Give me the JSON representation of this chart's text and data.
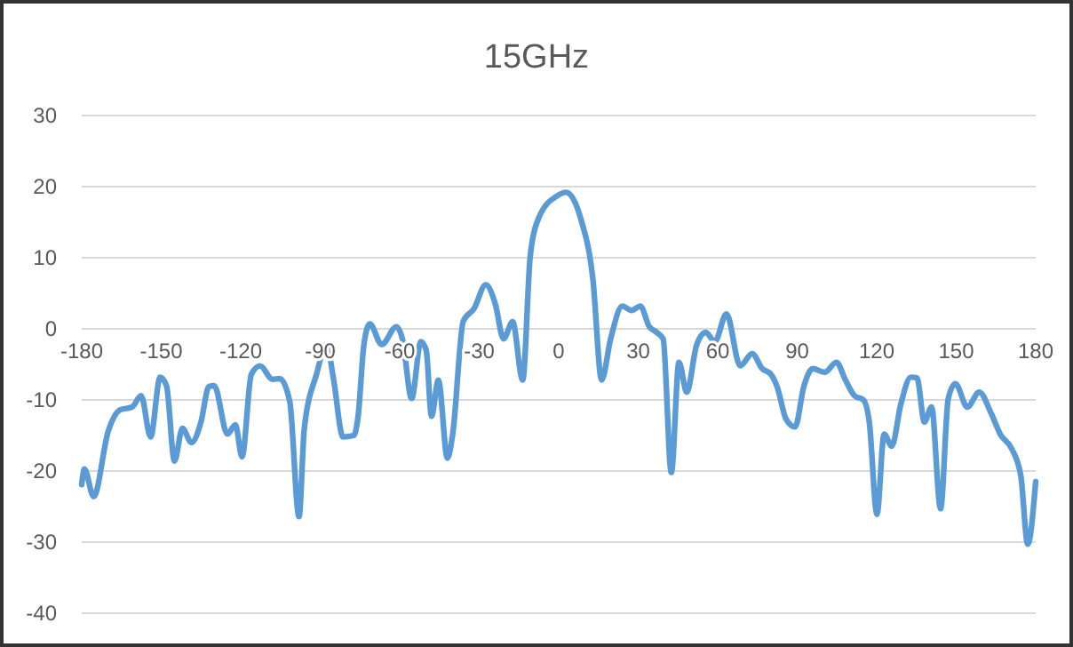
{
  "chart_data": {
    "type": "line",
    "title": "15GHz",
    "x": [
      -180,
      -179,
      -175.5,
      -170,
      -165.5,
      -161,
      -157.6,
      -154,
      -150.4,
      -148,
      -145,
      -142,
      -138.6,
      -135,
      -132,
      -130,
      -125,
      -122,
      -119.5,
      -116,
      -112.7,
      -108,
      -105.3,
      -101.5,
      -98,
      -96,
      -91.4,
      -87.6,
      -85,
      -81.4,
      -77.3,
      -75.7,
      -73.5,
      -71.3,
      -66.8,
      -61.2,
      -59,
      -55.5,
      -52,
      -50,
      -48,
      -45.4,
      -42,
      -40,
      -36,
      -32,
      -27.5,
      -24,
      -20.8,
      -17.4,
      -13.6,
      -10.7,
      -7.3,
      -0.6,
      2.8,
      8.4,
      12.9,
      16.2,
      19.6,
      24,
      27.5,
      30.8,
      34.2,
      37,
      39.4,
      42.5,
      45.4,
      48.3,
      52.1,
      55.5,
      58.9,
      63.3,
      68.5,
      73,
      76.8,
      80.1,
      82.4,
      85.8,
      89.2,
      92.5,
      95.9,
      100.4,
      104.8,
      108.2,
      111.6,
      115,
      117.2,
      120.1,
      122.8,
      125.7,
      129.1,
      132.9,
      135.2,
      138,
      140.7,
      144.1,
      147,
      149.7,
      154.2,
      158.7,
      163.2,
      166.6,
      171,
      174.4,
      177,
      180
    ],
    "series": [
      {
        "color": "#5b9bd5",
        "values": [
          -21.9,
          -19.7,
          -23.6,
          -14.4,
          -11.4,
          -11,
          -9.4,
          -15.2,
          -6.8,
          -8,
          -18.6,
          -14,
          -16,
          -13.1,
          -8.1,
          -8,
          -14.8,
          -13.5,
          -18,
          -6.4,
          -5.2,
          -7.1,
          -7,
          -10.2,
          -26.4,
          -14,
          -6.4,
          -2.2,
          -7,
          -15.2,
          -15,
          -12.3,
          -2.2,
          0.7,
          -2.2,
          0.3,
          -1.4,
          -9.8,
          -1.8,
          -3,
          -12.3,
          -7.2,
          -18.2,
          -14.8,
          1.1,
          2.8,
          6.2,
          3.6,
          -1.4,
          1,
          -7.2,
          10.4,
          15.8,
          18.7,
          19.2,
          15.4,
          7,
          -7.2,
          -1.4,
          3.2,
          2.6,
          3.2,
          0.3,
          -0.5,
          -1.4,
          -20.2,
          -4.7,
          -8.9,
          -2.2,
          -0.5,
          -1.8,
          2.1,
          -5.2,
          -3.5,
          -5.6,
          -6.4,
          -8.1,
          -12.7,
          -13.8,
          -8.1,
          -5.6,
          -6.1,
          -4.7,
          -7.2,
          -9.4,
          -10,
          -13.1,
          -26.1,
          -14.8,
          -16.5,
          -10.6,
          -6.8,
          -6.9,
          -13.1,
          -11,
          -25.3,
          -9.8,
          -7.7,
          -11,
          -8.9,
          -11.9,
          -14.8,
          -16.9,
          -20.7,
          -30.3,
          -21.5
        ]
      }
    ],
    "xlim": [
      -180,
      180
    ],
    "xticks": [
      -180,
      -150,
      -120,
      -90,
      -60,
      -30,
      0,
      30,
      60,
      90,
      120,
      150,
      180
    ],
    "ylim": [
      -40,
      30
    ],
    "yticks": [
      -40,
      -30,
      -20,
      -10,
      0,
      10,
      20,
      30
    ],
    "grid": "y",
    "marker": "none",
    "line_style": "solid"
  }
}
